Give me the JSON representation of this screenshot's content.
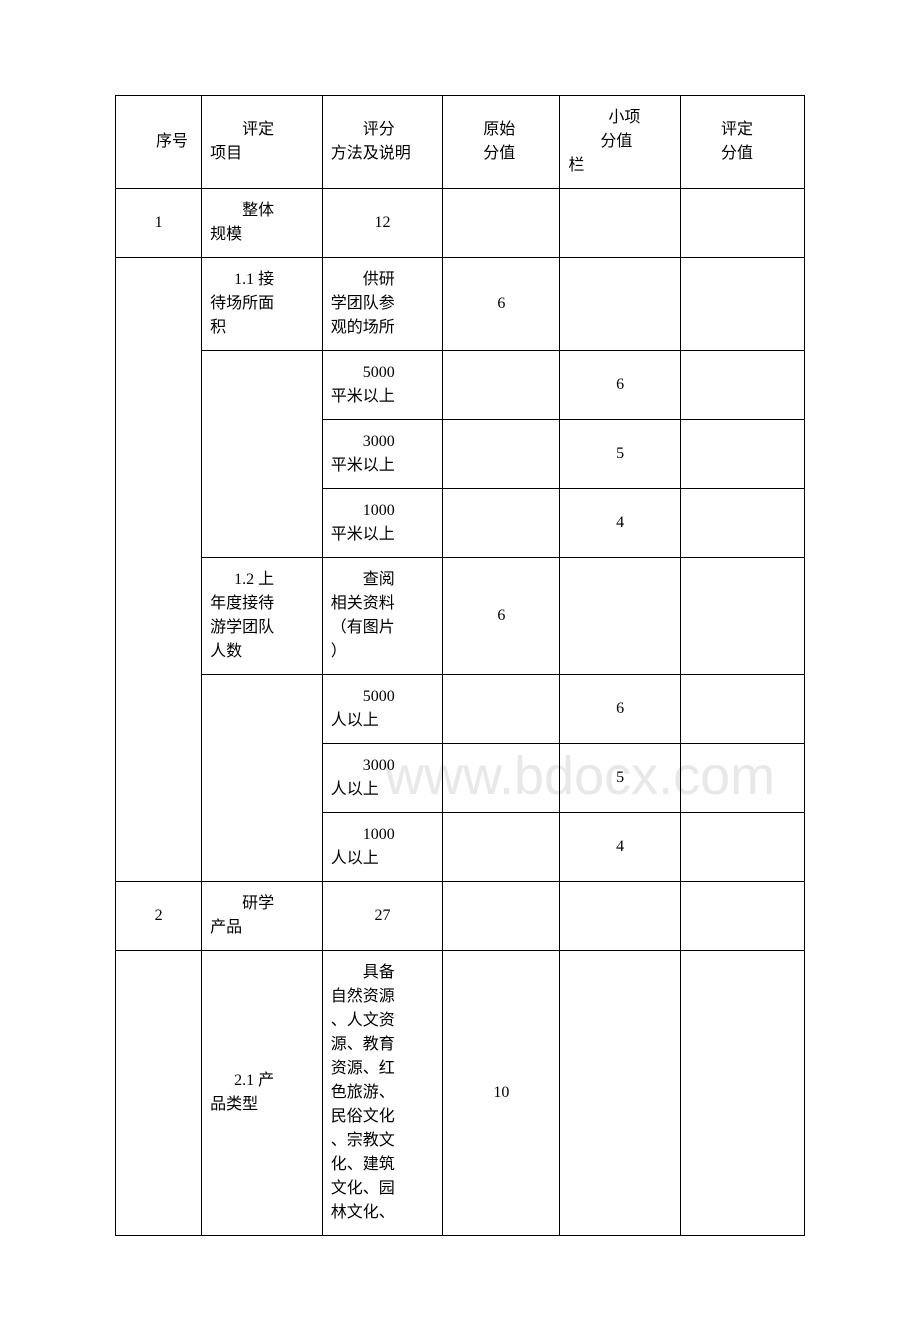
{
  "watermark": "www.bdocx.com",
  "header": {
    "col1": "序号",
    "col2_prefix": "评定",
    "col2_suffix": "项目",
    "col3_prefix": "评分",
    "col3_suffix": "方法及说明",
    "col4_prefix": "原始",
    "col4_suffix": "分值",
    "col5_prefix": "小项",
    "col5_mid": "分值",
    "col5_suffix": "栏",
    "col6_prefix": "评定",
    "col6_suffix": "分值"
  },
  "rows": {
    "r1": {
      "num": "1",
      "item_prefix": "整体",
      "item_suffix": "规模",
      "score": "12"
    },
    "r2": {
      "item_prefix": "1.1 接",
      "item_mid": "待场所面",
      "item_suffix": "积",
      "desc_prefix": "供研",
      "desc_mid": "学团队参",
      "desc_suffix": "观的场所",
      "score": "6"
    },
    "r3": {
      "desc_prefix": "5000",
      "desc_suffix": "平米以上",
      "sub": "6"
    },
    "r4": {
      "desc_prefix": "3000",
      "desc_suffix": "平米以上",
      "sub": "5"
    },
    "r5": {
      "desc_prefix": "1000",
      "desc_suffix": "平米以上",
      "sub": "4"
    },
    "r6": {
      "item_prefix": "1.2 上",
      "item_mid1": "年度接待",
      "item_mid2": "游学团队",
      "item_suffix": "人数",
      "desc_prefix": "查阅",
      "desc_mid1": "相关资料",
      "desc_mid2": "（有图片",
      "desc_suffix": "）",
      "score": "6"
    },
    "r7": {
      "desc_prefix": "5000",
      "desc_suffix": "人以上",
      "sub": "6"
    },
    "r8": {
      "desc_prefix": "3000",
      "desc_suffix": "人以上",
      "sub": "5"
    },
    "r9": {
      "desc_prefix": "1000",
      "desc_suffix": "人以上",
      "sub": "4"
    },
    "r10": {
      "num": "2",
      "item_prefix": "研学",
      "item_suffix": "产品",
      "score": "27"
    },
    "r11": {
      "item_prefix": "2.1 产",
      "item_suffix": "品类型",
      "desc_prefix": "具备",
      "desc_l1": "自然资源",
      "desc_l2": "、人文资",
      "desc_l3": "源、教育",
      "desc_l4": "资源、红",
      "desc_l5": "色旅游、",
      "desc_l6": "民俗文化",
      "desc_l7": "、宗教文",
      "desc_l8": "化、建筑",
      "desc_l9": "文化、园",
      "desc_l10": "林文化、",
      "score": "10"
    }
  }
}
